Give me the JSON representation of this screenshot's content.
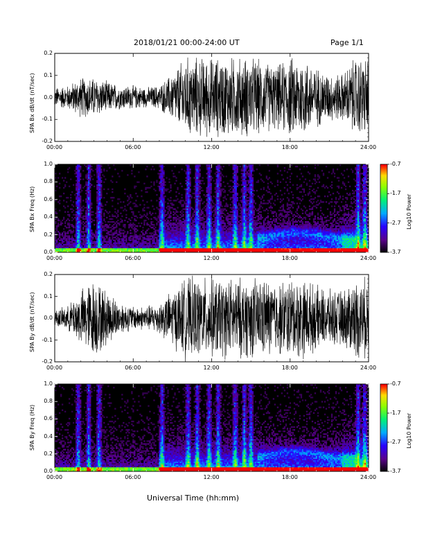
{
  "header": {
    "title": "2018/01/21   00:00-24:00 UT",
    "page": "Page 1/1"
  },
  "xlabel": "Universal Time (hh:mm)",
  "colorbar": {
    "ticks": [
      "-0.7",
      "-1.7",
      "-2.7",
      "-3.7"
    ],
    "title": "Log10 Power",
    "colors": [
      "#ff0000",
      "#ffff00",
      "#00ff00",
      "#00ffff",
      "#0000ff",
      "#8000ff",
      "#000000"
    ]
  },
  "chart_data": [
    {
      "type": "line",
      "name": "bx-timeseries",
      "ylabel": "SPA Bx dB/dt (nT/sec)",
      "xlim": [
        0,
        24
      ],
      "ylim": [
        -0.2,
        0.2
      ],
      "xticks": [
        "00:00",
        "06:00",
        "12:00",
        "18:00",
        "24:00"
      ],
      "yticks": [
        "0.2",
        "0.1",
        "0.0",
        "-0.1",
        "-0.2"
      ],
      "envelope": {
        "hours": [
          0,
          1,
          2,
          3,
          4,
          5,
          6,
          7,
          8,
          9,
          10,
          11,
          12,
          13,
          14,
          15,
          16,
          17,
          18,
          19,
          20,
          21,
          22,
          23,
          24
        ],
        "amplitude": [
          0.05,
          0.06,
          0.1,
          0.1,
          0.08,
          0.06,
          0.06,
          0.05,
          0.06,
          0.12,
          0.2,
          0.2,
          0.2,
          0.2,
          0.2,
          0.2,
          0.18,
          0.16,
          0.2,
          0.2,
          0.15,
          0.12,
          0.12,
          0.2,
          0.2
        ]
      }
    },
    {
      "type": "heatmap",
      "name": "bx-spectrogram",
      "ylabel": "SPA Bx Freq (Hz)",
      "xlim": [
        0,
        24
      ],
      "ylim": [
        0,
        1
      ],
      "zlim": [
        -3.7,
        -0.7
      ],
      "xticks": [
        "00:00",
        "06:00",
        "12:00",
        "18:00",
        "24:00"
      ],
      "yticks": [
        "1.0",
        "0.8",
        "0.6",
        "0.4",
        "0.2",
        "0.0"
      ],
      "bursts_hours": [
        1.8,
        2.6,
        3.4,
        8.2,
        10.2,
        10.9,
        11.8,
        12.5,
        13.8,
        14.5,
        15.0,
        23.2,
        23.7
      ],
      "band_peak_hours": 18.5
    },
    {
      "type": "line",
      "name": "by-timeseries",
      "ylabel": "SPA By dB/dt (nT/sec)",
      "xlim": [
        0,
        24
      ],
      "ylim": [
        -0.2,
        0.2
      ],
      "xticks": [
        "00:00",
        "06:00",
        "12:00",
        "18:00",
        "24:00"
      ],
      "yticks": [
        "0.2",
        "0.1",
        "0.0",
        "-0.1",
        "-0.2"
      ],
      "envelope": {
        "hours": [
          0,
          1,
          2,
          3,
          4,
          5,
          6,
          7,
          8,
          9,
          10,
          11,
          12,
          13,
          14,
          15,
          16,
          17,
          18,
          19,
          20,
          21,
          22,
          23,
          24
        ],
        "amplitude": [
          0.04,
          0.06,
          0.14,
          0.2,
          0.14,
          0.08,
          0.06,
          0.06,
          0.08,
          0.14,
          0.2,
          0.2,
          0.2,
          0.2,
          0.2,
          0.2,
          0.2,
          0.18,
          0.2,
          0.2,
          0.16,
          0.14,
          0.14,
          0.2,
          0.2
        ]
      }
    },
    {
      "type": "heatmap",
      "name": "by-spectrogram",
      "ylabel": "SPA By Freq (Hz)",
      "xlim": [
        0,
        24
      ],
      "ylim": [
        0,
        1
      ],
      "zlim": [
        -3.7,
        -0.7
      ],
      "xticks": [
        "00:00",
        "06:00",
        "12:00",
        "18:00",
        "24:00"
      ],
      "yticks": [
        "1.0",
        "0.8",
        "0.6",
        "0.4",
        "0.2",
        "0.0"
      ],
      "bursts_hours": [
        1.8,
        2.6,
        3.4,
        8.2,
        10.2,
        10.9,
        11.8,
        12.5,
        13.8,
        14.5,
        15.0,
        23.2,
        23.7
      ],
      "band_peak_hours": 18.3
    }
  ]
}
